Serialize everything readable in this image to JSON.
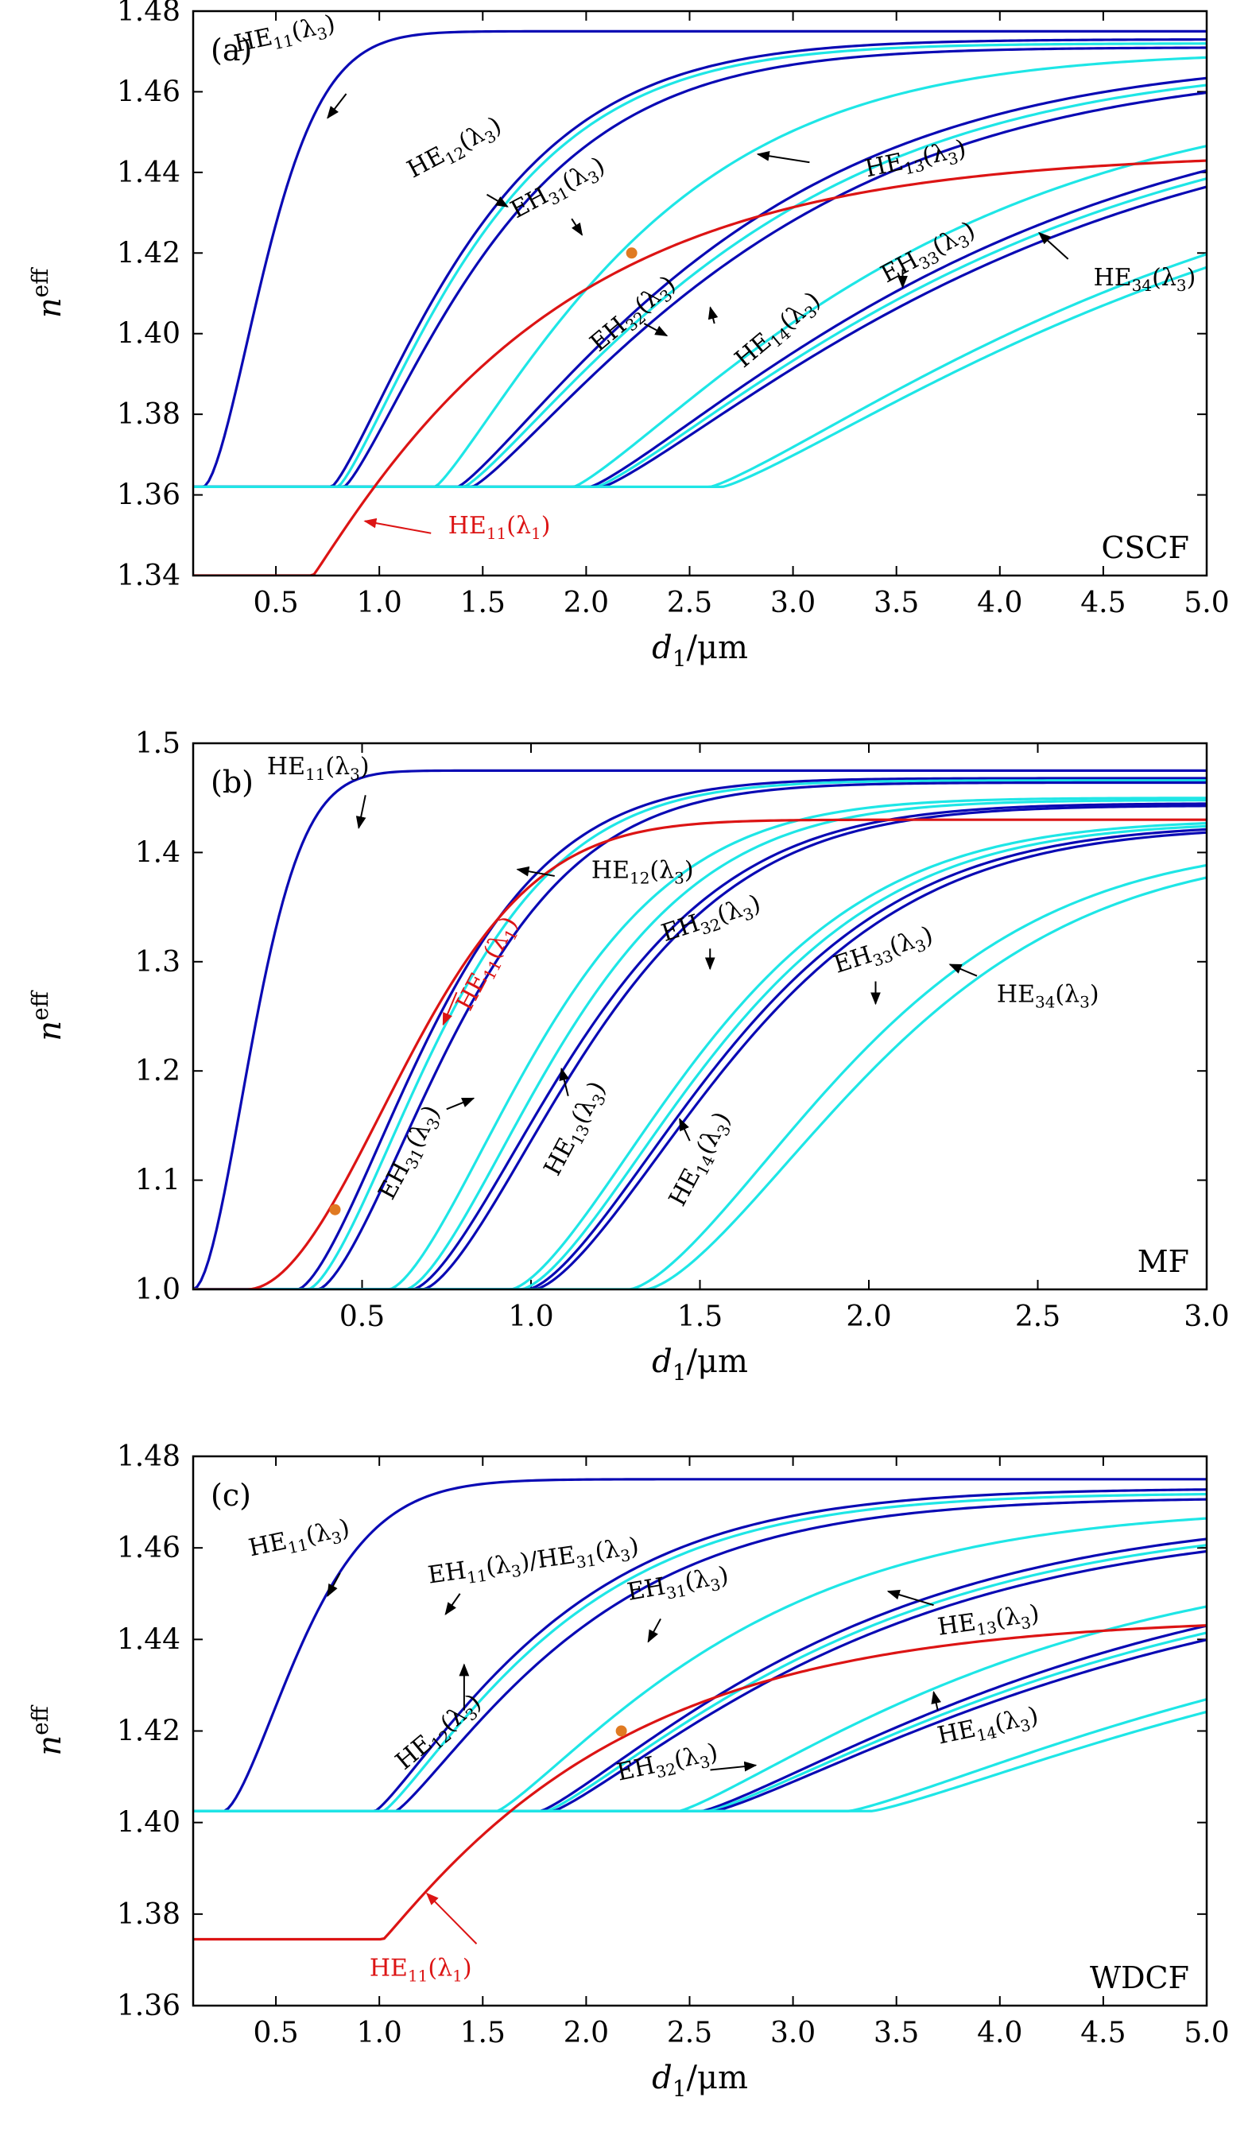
{
  "colors": {
    "dark_blue": "#0a0ab4",
    "cyan": "#1ee6e6",
    "red": "#dc1414",
    "marker": "#e07a22",
    "text_red": "#dc1414"
  },
  "chart_data": [
    {
      "type": "line",
      "panel_label": "(a)",
      "fiber": "CSCF",
      "xlabel_main": "d",
      "xlabel_sub": "1",
      "xlabel_unit": "/μm",
      "ylabel_main": "n",
      "ylabel_sup": "eff",
      "xlim": [
        0.1,
        5.0
      ],
      "ylim": [
        1.34,
        1.48
      ],
      "xticks": [
        0.5,
        1.0,
        1.5,
        2.0,
        2.5,
        3.0,
        3.5,
        4.0,
        4.5,
        5.0
      ],
      "xtick_labels": [
        "0.5",
        "1.0",
        "1.5",
        "2.0",
        "2.5",
        "3.0",
        "3.5",
        "4.0",
        "4.5",
        "5.0"
      ],
      "yticks": [
        1.34,
        1.36,
        1.38,
        1.4,
        1.42,
        1.44,
        1.46,
        1.48
      ],
      "ytick_labels": [
        "1.34",
        "1.36",
        "1.38",
        "1.40",
        "1.42",
        "1.44",
        "1.46",
        "1.48"
      ],
      "floor": 1.362,
      "series": [
        {
          "color": "dark_blue",
          "x0": 0.15,
          "top": 1.475,
          "k": 2.6,
          "p": 1.6
        },
        {
          "color": "dark_blue",
          "x0": 0.77,
          "top": 1.473,
          "k": 1.25,
          "p": 1.25
        },
        {
          "color": "cyan",
          "x0": 0.8,
          "top": 1.472,
          "k": 1.25,
          "p": 1.25
        },
        {
          "color": "dark_blue",
          "x0": 0.83,
          "top": 1.471,
          "k": 1.18,
          "p": 1.25
        },
        {
          "color": "cyan",
          "x0": 1.27,
          "top": 1.47,
          "k": 0.9,
          "p": 1.2
        },
        {
          "color": "dark_blue",
          "x0": 1.38,
          "top": 1.469,
          "k": 0.68,
          "p": 1.2
        },
        {
          "color": "cyan",
          "x0": 1.41,
          "top": 1.468,
          "k": 0.66,
          "p": 1.2
        },
        {
          "color": "dark_blue",
          "x0": 1.45,
          "top": 1.467,
          "k": 0.64,
          "p": 1.2
        },
        {
          "color": "cyan",
          "x0": 1.94,
          "top": 1.462,
          "k": 0.55,
          "p": 1.2
        },
        {
          "color": "dark_blue",
          "x0": 2.02,
          "top": 1.462,
          "k": 0.48,
          "p": 1.2
        },
        {
          "color": "cyan",
          "x0": 2.05,
          "top": 1.461,
          "k": 0.47,
          "p": 1.2
        },
        {
          "color": "dark_blue",
          "x0": 2.08,
          "top": 1.46,
          "k": 0.46,
          "p": 1.2
        },
        {
          "color": "cyan",
          "x0": 2.6,
          "top": 1.456,
          "k": 0.4,
          "p": 1.2
        },
        {
          "color": "cyan",
          "x0": 2.66,
          "top": 1.454,
          "k": 0.39,
          "p": 1.2
        }
      ],
      "red_curve": {
        "x0": 0.68,
        "y0": 1.34,
        "top": 1.445,
        "k": 0.85,
        "p": 1.05
      },
      "marker": {
        "x": 2.22,
        "y": 1.42
      },
      "annotations": [
        {
          "main": "HE",
          "sub": "11",
          "arg": "(λ",
          "argsub": "3",
          "argend": ")",
          "tx": 0.55,
          "ty": 1.4725,
          "rot": -12,
          "ax1": 0.84,
          "ay1": 1.4595,
          "ax2": 0.75,
          "ay2": 1.4535,
          "color": "black"
        },
        {
          "main": "HE",
          "sub": "12",
          "arg": "(λ",
          "argsub": "3",
          "argend": ")",
          "tx": 1.38,
          "ty": 1.4445,
          "rot": -28,
          "ax1": 1.52,
          "ay1": 1.4345,
          "ax2": 1.62,
          "ay2": 1.4315,
          "color": "black"
        },
        {
          "main": "EH",
          "sub": "31",
          "arg": "(λ",
          "argsub": "3",
          "argend": ")",
          "tx": 1.88,
          "ty": 1.4345,
          "rot": -28,
          "ax1": 1.93,
          "ay1": 1.4285,
          "ax2": 1.98,
          "ay2": 1.4245,
          "color": "black"
        },
        {
          "main": "HE",
          "sub": "13",
          "arg": "(λ",
          "argsub": "3",
          "argend": ")",
          "tx": 3.6,
          "ty": 1.4415,
          "rot": -12,
          "ax1": 3.08,
          "ay1": 1.4425,
          "ax2": 2.83,
          "ay2": 1.4445,
          "color": "black"
        },
        {
          "main": "EH",
          "sub": "32",
          "arg": "(λ",
          "argsub": "3",
          "argend": ")",
          "tx": 2.25,
          "ty": 1.4035,
          "rot": -40,
          "ax1": 2.28,
          "ay1": 1.4025,
          "ax2": 2.39,
          "ay2": 1.3995,
          "color": "black"
        },
        {
          "main": "HE",
          "sub": "14",
          "arg": "(λ",
          "argsub": "3",
          "argend": ")",
          "tx": 2.95,
          "ty": 1.3995,
          "rot": -40,
          "ax1": 2.62,
          "ay1": 1.4025,
          "ax2": 2.6,
          "ay2": 1.4065,
          "color": "black"
        },
        {
          "main": "EH",
          "sub": "33",
          "arg": "(λ",
          "argsub": "3",
          "argend": ")",
          "tx": 3.67,
          "ty": 1.4185,
          "rot": -28,
          "ax1": 3.53,
          "ay1": 1.416,
          "ax2": 3.53,
          "ay2": 1.4115,
          "color": "black"
        },
        {
          "main": "HE",
          "sub": "34",
          "arg": "(λ",
          "argsub": "3",
          "argend": ")",
          "tx": 4.7,
          "ty": 1.412,
          "rot": 0,
          "ax1": 4.33,
          "ay1": 1.4185,
          "ax2": 4.19,
          "ay2": 1.425,
          "color": "black"
        },
        {
          "main": "HE",
          "sub": "11",
          "arg": "(λ",
          "argsub": "1",
          "argend": ")",
          "tx": 1.58,
          "ty": 1.3505,
          "rot": 0,
          "ax1": 1.25,
          "ay1": 1.3505,
          "ax2": 0.93,
          "ay2": 1.3535,
          "color": "red"
        }
      ]
    },
    {
      "type": "line",
      "panel_label": "(b)",
      "fiber": "MF",
      "xlabel_main": "d",
      "xlabel_sub": "1",
      "xlabel_unit": "/μm",
      "ylabel_main": "n",
      "ylabel_sup": "eff",
      "xlim": [
        0.0,
        3.0
      ],
      "ylim": [
        1.0,
        1.5
      ],
      "xticks": [
        0.5,
        1.0,
        1.5,
        2.0,
        2.5,
        3.0
      ],
      "xtick_labels": [
        "0.5",
        "1.0",
        "1.5",
        "2.0",
        "2.5",
        "3.0"
      ],
      "yticks": [
        1.0,
        1.1,
        1.2,
        1.3,
        1.4,
        1.5
      ],
      "ytick_labels": [
        "1.0",
        "1.1",
        "1.2",
        "1.3",
        "1.4",
        "1.5"
      ],
      "floor": 1.0,
      "series": [
        {
          "color": "dark_blue",
          "x0": 0.0,
          "top": 1.475,
          "k": 4.5,
          "p": 1.8
        },
        {
          "color": "dark_blue",
          "x0": 0.31,
          "top": 1.468,
          "k": 2.0,
          "p": 1.5
        },
        {
          "color": "cyan",
          "x0": 0.34,
          "top": 1.466,
          "k": 2.0,
          "p": 1.5
        },
        {
          "color": "dark_blue",
          "x0": 0.37,
          "top": 1.464,
          "k": 1.95,
          "p": 1.5
        },
        {
          "color": "cyan",
          "x0": 0.58,
          "top": 1.45,
          "k": 1.75,
          "p": 1.5
        },
        {
          "color": "cyan",
          "x0": 0.63,
          "top": 1.448,
          "k": 1.7,
          "p": 1.5
        },
        {
          "color": "dark_blue",
          "x0": 0.65,
          "top": 1.445,
          "k": 1.6,
          "p": 1.5
        },
        {
          "color": "dark_blue",
          "x0": 0.68,
          "top": 1.443,
          "k": 1.6,
          "p": 1.5
        },
        {
          "color": "cyan",
          "x0": 0.94,
          "top": 1.43,
          "k": 1.4,
          "p": 1.5
        },
        {
          "color": "cyan",
          "x0": 0.97,
          "top": 1.428,
          "k": 1.38,
          "p": 1.5
        },
        {
          "color": "dark_blue",
          "x0": 0.99,
          "top": 1.426,
          "k": 1.35,
          "p": 1.5
        },
        {
          "color": "dark_blue",
          "x0": 1.01,
          "top": 1.424,
          "k": 1.33,
          "p": 1.5
        },
        {
          "color": "cyan",
          "x0": 1.29,
          "top": 1.41,
          "k": 1.2,
          "p": 1.5
        },
        {
          "color": "cyan",
          "x0": 1.34,
          "top": 1.405,
          "k": 1.16,
          "p": 1.5
        }
      ],
      "red_curve": {
        "x0": 0.16,
        "y0": 1.0,
        "top": 1.43,
        "k": 1.7,
        "p": 1.9
      },
      "marker": {
        "x": 0.42,
        "y": 1.073
      },
      "annotations": [
        {
          "main": "HE",
          "sub": "11",
          "arg": "(λ",
          "argsub": "3",
          "argend": ")",
          "tx": 0.37,
          "ty": 1.4715,
          "rot": 0,
          "ax1": 0.51,
          "ay1": 1.4525,
          "ax2": 0.49,
          "ay2": 1.4225,
          "color": "black"
        },
        {
          "main": "HE",
          "sub": "12",
          "arg": "(λ",
          "argsub": "3",
          "argend": ")",
          "tx": 1.33,
          "ty": 1.3765,
          "rot": 0,
          "ax1": 1.07,
          "ay1": 1.3785,
          "ax2": 0.96,
          "ay2": 1.3845,
          "color": "black"
        },
        {
          "main": "HE",
          "sub": "11",
          "arg": "(λ",
          "argsub": "1",
          "argend": ")",
          "tx": 0.89,
          "ty": 1.295,
          "rot": -62,
          "ax1": 0.78,
          "ay1": 1.272,
          "ax2": 0.74,
          "ay2": 1.2425,
          "color": "red"
        },
        {
          "main": "EH",
          "sub": "32",
          "arg": "(λ",
          "argsub": "3",
          "argend": ")",
          "tx": 1.54,
          "ty": 1.333,
          "rot": -18,
          "ax1": 1.53,
          "ay1": 1.312,
          "ax2": 1.53,
          "ay2": 1.2935,
          "color": "black"
        },
        {
          "main": "EH",
          "sub": "33",
          "arg": "(λ",
          "argsub": "3",
          "argend": ")",
          "tx": 2.05,
          "ty": 1.304,
          "rot": -18,
          "ax1": 2.02,
          "ay1": 1.282,
          "ax2": 2.02,
          "ay2": 1.2615,
          "color": "black"
        },
        {
          "main": "HE",
          "sub": "34",
          "arg": "(λ",
          "argsub": "3",
          "argend": ")",
          "tx": 2.53,
          "ty": 1.263,
          "rot": 0,
          "ax1": 2.32,
          "ay1": 1.287,
          "ax2": 2.24,
          "ay2": 1.2975,
          "color": "black"
        },
        {
          "main": "EH",
          "sub": "31",
          "arg": "(λ",
          "argsub": "3",
          "argend": ")",
          "tx": 0.66,
          "ty": 1.122,
          "rot": -62,
          "ax1": 0.75,
          "ay1": 1.165,
          "ax2": 0.83,
          "ay2": 1.175,
          "color": "black"
        },
        {
          "main": "HE",
          "sub": "13",
          "arg": "(λ",
          "argsub": "3",
          "argend": ")",
          "tx": 1.15,
          "ty": 1.144,
          "rot": -62,
          "ax1": 1.11,
          "ay1": 1.177,
          "ax2": 1.09,
          "ay2": 1.202,
          "color": "black"
        },
        {
          "main": "HE",
          "sub": "14",
          "arg": "(λ",
          "argsub": "3",
          "argend": ")",
          "tx": 1.52,
          "ty": 1.116,
          "rot": -62,
          "ax1": 1.47,
          "ay1": 1.136,
          "ax2": 1.44,
          "ay2": 1.156,
          "color": "black"
        }
      ]
    },
    {
      "type": "line",
      "panel_label": "(c)",
      "fiber": "WDCF",
      "xlabel_main": "d",
      "xlabel_sub": "1",
      "xlabel_unit": "/μm",
      "ylabel_main": "n",
      "ylabel_sup": "eff",
      "xlim": [
        0.1,
        5.0
      ],
      "ylim": [
        1.36,
        1.48
      ],
      "xticks": [
        0.5,
        1.0,
        1.5,
        2.0,
        2.5,
        3.0,
        3.5,
        4.0,
        4.5,
        5.0
      ],
      "xtick_labels": [
        "0.5",
        "1.0",
        "1.5",
        "2.0",
        "2.5",
        "3.0",
        "3.5",
        "4.0",
        "4.5",
        "5.0"
      ],
      "yticks": [
        1.36,
        1.38,
        1.4,
        1.42,
        1.44,
        1.46,
        1.48
      ],
      "ytick_labels": [
        "1.36",
        "1.38",
        "1.40",
        "1.42",
        "1.44",
        "1.46",
        "1.48"
      ],
      "floor": 1.4025,
      "series": [
        {
          "color": "dark_blue",
          "x0": 0.25,
          "top": 1.475,
          "k": 2.1,
          "p": 1.5
        },
        {
          "color": "dark_blue",
          "x0": 0.98,
          "top": 1.473,
          "k": 1.05,
          "p": 1.2
        },
        {
          "color": "cyan",
          "x0": 1.02,
          "top": 1.472,
          "k": 1.05,
          "p": 1.2
        },
        {
          "color": "dark_blue",
          "x0": 1.08,
          "top": 1.471,
          "k": 1.0,
          "p": 1.2
        },
        {
          "color": "cyan",
          "x0": 1.57,
          "top": 1.469,
          "k": 0.78,
          "p": 1.2
        },
        {
          "color": "dark_blue",
          "x0": 1.78,
          "top": 1.468,
          "k": 0.64,
          "p": 1.2
        },
        {
          "color": "cyan",
          "x0": 1.81,
          "top": 1.467,
          "k": 0.63,
          "p": 1.2
        },
        {
          "color": "dark_blue",
          "x0": 1.84,
          "top": 1.466,
          "k": 0.62,
          "p": 1.2
        },
        {
          "color": "cyan",
          "x0": 2.45,
          "top": 1.46,
          "k": 0.55,
          "p": 1.2
        },
        {
          "color": "dark_blue",
          "x0": 2.56,
          "top": 1.461,
          "k": 0.47,
          "p": 1.2
        },
        {
          "color": "cyan",
          "x0": 2.59,
          "top": 1.46,
          "k": 0.46,
          "p": 1.2
        },
        {
          "color": "dark_blue",
          "x0": 2.62,
          "top": 1.459,
          "k": 0.45,
          "p": 1.2
        },
        {
          "color": "cyan",
          "x0": 3.27,
          "top": 1.454,
          "k": 0.4,
          "p": 1.2
        },
        {
          "color": "cyan",
          "x0": 3.38,
          "top": 1.452,
          "k": 0.39,
          "p": 1.2
        }
      ],
      "red_curve": {
        "x0": 1.02,
        "y0": 1.3745,
        "top": 1.445,
        "k": 0.85,
        "p": 1.05
      },
      "marker": {
        "x": 2.17,
        "y": 1.42
      },
      "annotations": [
        {
          "main": "HE",
          "sub": "11",
          "arg": "(λ",
          "argsub": "3",
          "argend": ")",
          "tx": 0.62,
          "ty": 1.4605,
          "rot": -12,
          "ax1": 0.81,
          "ay1": 1.4545,
          "ax2": 0.75,
          "ay2": 1.4495,
          "color": "black"
        },
        {
          "main": "EH",
          "sub": "11",
          "arg": "(λ",
          "argsub": "3",
          "argend": ")/HE",
          "sub2": "31",
          "arg2": "(λ",
          "argsub2": "3",
          "tx": 1.75,
          "ty": 1.4555,
          "rot": -8,
          "ax1": 1.39,
          "ay1": 1.45,
          "ax2": 1.32,
          "ay2": 1.4455,
          "color": "black"
        },
        {
          "main": "EH",
          "sub": "31",
          "arg": "(λ",
          "argsub": "3",
          "argend": ")",
          "tx": 2.45,
          "ty": 1.4505,
          "rot": -10,
          "ax1": 2.36,
          "ay1": 1.4445,
          "ax2": 2.3,
          "ay2": 1.4395,
          "color": "black"
        },
        {
          "main": "HE",
          "sub": "12",
          "arg": "(λ",
          "argsub": "3",
          "argend": ")",
          "tx": 1.31,
          "ty": 1.4185,
          "rot": -40,
          "ax1": 1.41,
          "ay1": 1.4245,
          "ax2": 1.41,
          "ay2": 1.4345,
          "color": "black"
        },
        {
          "main": "HE",
          "sub": "13",
          "arg": "(λ",
          "argsub": "3",
          "argend": ")",
          "tx": 3.95,
          "ty": 1.4425,
          "rot": -8,
          "ax1": 3.68,
          "ay1": 1.4475,
          "ax2": 3.46,
          "ay2": 1.4505,
          "color": "black"
        },
        {
          "main": "EH",
          "sub": "32",
          "arg": "(λ",
          "argsub": "3",
          "argend": ")",
          "tx": 2.4,
          "ty": 1.4115,
          "rot": -12,
          "ax1": 2.6,
          "ay1": 1.4115,
          "ax2": 2.82,
          "ay2": 1.4125,
          "color": "black"
        },
        {
          "main": "HE",
          "sub": "14",
          "arg": "(λ",
          "argsub": "3",
          "argend": ")",
          "tx": 3.95,
          "ty": 1.4195,
          "rot": -12,
          "ax1": 3.7,
          "ay1": 1.4245,
          "ax2": 3.68,
          "ay2": 1.4285,
          "color": "black"
        },
        {
          "main": "HE",
          "sub": "11",
          "arg": "(λ",
          "argsub": "1",
          "argend": ")",
          "tx": 1.2,
          "ty": 1.3665,
          "rot": 0,
          "ax1": 1.47,
          "ay1": 1.3735,
          "ax2": 1.23,
          "ay2": 1.3845,
          "color": "red"
        }
      ]
    }
  ]
}
